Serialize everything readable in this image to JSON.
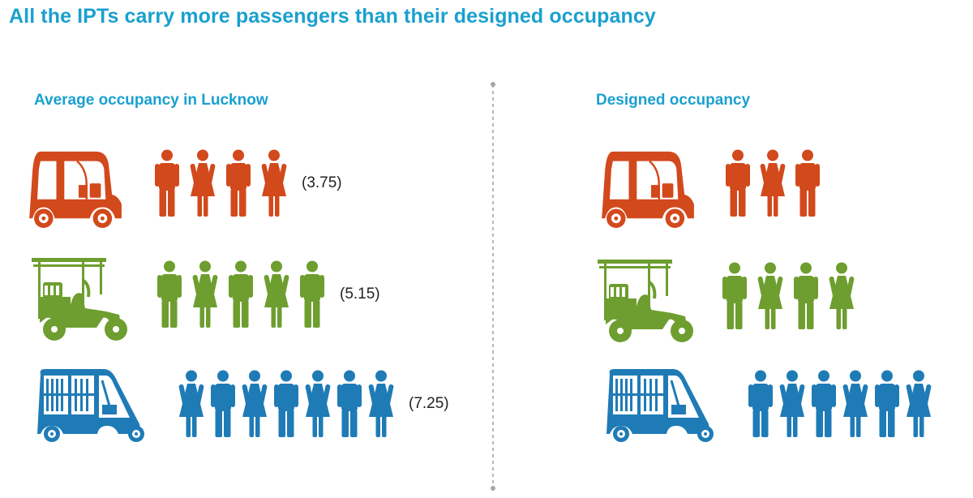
{
  "title": "All the IPTs carry more passengers than their designed occupancy",
  "colors": {
    "title": "#1aa0cf",
    "auto": "#d2491c",
    "erickshaw": "#6e9e2f",
    "vikram": "#1f7bb6"
  },
  "panels": [
    {
      "heading": "Average occupancy in Lucknow",
      "rows": [
        {
          "vehicle": "auto-rickshaw-icon",
          "color": "#d2491c",
          "figures": [
            "male",
            "female",
            "male",
            "female"
          ],
          "label": "(3.75)"
        },
        {
          "vehicle": "e-rickshaw-icon",
          "color": "#6e9e2f",
          "figures": [
            "male",
            "female",
            "male",
            "female",
            "male"
          ],
          "label": "(5.15)"
        },
        {
          "vehicle": "tempo-icon",
          "color": "#1f7bb6",
          "figures": [
            "female",
            "male",
            "female",
            "male",
            "female",
            "male",
            "female"
          ],
          "label": "(7.25)"
        }
      ]
    },
    {
      "heading": "Designed occupancy",
      "rows": [
        {
          "vehicle": "auto-rickshaw-icon",
          "color": "#d2491c",
          "figures": [
            "male",
            "female",
            "male"
          ],
          "label": ""
        },
        {
          "vehicle": "e-rickshaw-icon",
          "color": "#6e9e2f",
          "figures": [
            "male",
            "female",
            "male",
            "female"
          ],
          "label": ""
        },
        {
          "vehicle": "tempo-icon",
          "color": "#1f7bb6",
          "figures": [
            "male",
            "female",
            "male",
            "female",
            "male",
            "female"
          ],
          "label": ""
        }
      ]
    }
  ]
}
